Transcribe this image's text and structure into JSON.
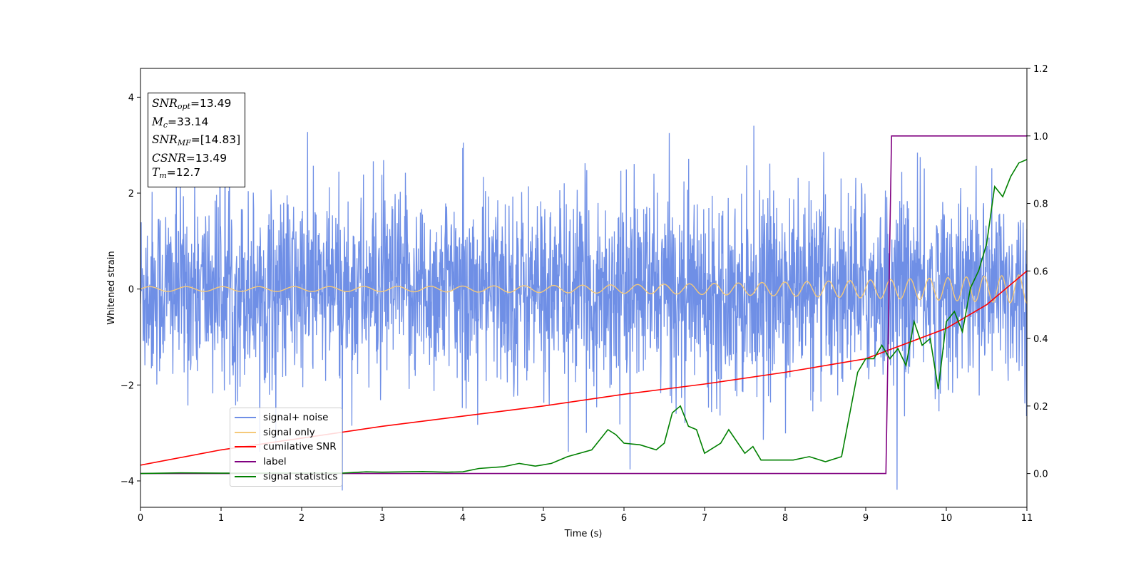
{
  "chart_data": {
    "type": "line",
    "xlabel": "Time (s)",
    "ylabel": "Whitened strain",
    "xlim": [
      0,
      11
    ],
    "ylim": [
      -4.55,
      4.6
    ],
    "y2lim": [
      -0.1,
      1.2
    ],
    "x_ticks": [
      "0",
      "1",
      "2",
      "3",
      "4",
      "5",
      "6",
      "7",
      "8",
      "9",
      "10",
      "11"
    ],
    "y_ticks": [
      "−4",
      "−2",
      "0",
      "2",
      "4"
    ],
    "y2_ticks": [
      "0.0",
      "0.2",
      "0.4",
      "0.6",
      "0.8",
      "1.0",
      "1.2"
    ],
    "legend_position": "lower-left",
    "info_box": {
      "line1": {
        "sym": "SNR",
        "sub": "opt",
        "val": "=13.49"
      },
      "line2": {
        "sym": "M",
        "sub": "c",
        "val": "=33.14"
      },
      "line3": {
        "sym": "SNR",
        "sub": "MF",
        "val": "=[14.83]"
      },
      "line4": {
        "sym": "CSNR",
        "sub": "",
        "val": "=13.49"
      },
      "line5": {
        "sym": "T",
        "sub": "m",
        "val": "=12.7"
      }
    },
    "series": [
      {
        "name": "signal+ noise",
        "color": "#6f8fe6",
        "axis": "left",
        "noise_std": 1.0,
        "x_range": [
          0,
          11
        ]
      },
      {
        "name": "signal only",
        "color": "#f5c97a",
        "axis": "left",
        "amplitude_start": 0.05,
        "amplitude_end": 0.3,
        "x_range": [
          0,
          11
        ]
      },
      {
        "name": "cumilative SNR",
        "color": "#ff0000",
        "axis": "right",
        "x": [
          0,
          1,
          2,
          3,
          4,
          5,
          6,
          7,
          8,
          9,
          10,
          10.5,
          11
        ],
        "y": [
          0.025,
          0.07,
          0.105,
          0.14,
          0.17,
          0.2,
          0.235,
          0.265,
          0.3,
          0.34,
          0.43,
          0.5,
          0.6
        ]
      },
      {
        "name": "label",
        "color": "#800080",
        "axis": "right",
        "x": [
          0,
          9.25,
          9.32,
          11
        ],
        "y": [
          0,
          0,
          1,
          1
        ]
      },
      {
        "name": "signal statistics",
        "color": "#008000",
        "axis": "right",
        "x": [
          0,
          0.5,
          1,
          1.5,
          2,
          2.5,
          2.8,
          3,
          3.5,
          3.8,
          4,
          4.2,
          4.5,
          4.7,
          4.9,
          5.1,
          5.3,
          5.6,
          5.8,
          5.9,
          6.0,
          6.2,
          6.4,
          6.5,
          6.6,
          6.7,
          6.8,
          6.9,
          7.0,
          7.2,
          7.3,
          7.5,
          7.6,
          7.7,
          7.9,
          8.1,
          8.3,
          8.5,
          8.7,
          8.9,
          9.0,
          9.1,
          9.2,
          9.3,
          9.4,
          9.5,
          9.6,
          9.7,
          9.8,
          9.9,
          10.0,
          10.1,
          10.2,
          10.3,
          10.4,
          10.5,
          10.6,
          10.7,
          10.8,
          10.9,
          11.0
        ],
        "y": [
          0,
          0.002,
          0.001,
          0.001,
          0.001,
          0.001,
          0.005,
          0.004,
          0.006,
          0.004,
          0.005,
          0.015,
          0.02,
          0.03,
          0.022,
          0.03,
          0.05,
          0.07,
          0.13,
          0.115,
          0.09,
          0.085,
          0.07,
          0.09,
          0.18,
          0.2,
          0.14,
          0.13,
          0.06,
          0.09,
          0.13,
          0.06,
          0.08,
          0.04,
          0.04,
          0.04,
          0.05,
          0.035,
          0.05,
          0.3,
          0.34,
          0.34,
          0.38,
          0.34,
          0.37,
          0.32,
          0.45,
          0.38,
          0.4,
          0.25,
          0.45,
          0.48,
          0.42,
          0.55,
          0.6,
          0.68,
          0.85,
          0.82,
          0.88,
          0.92,
          0.93
        ]
      }
    ]
  }
}
